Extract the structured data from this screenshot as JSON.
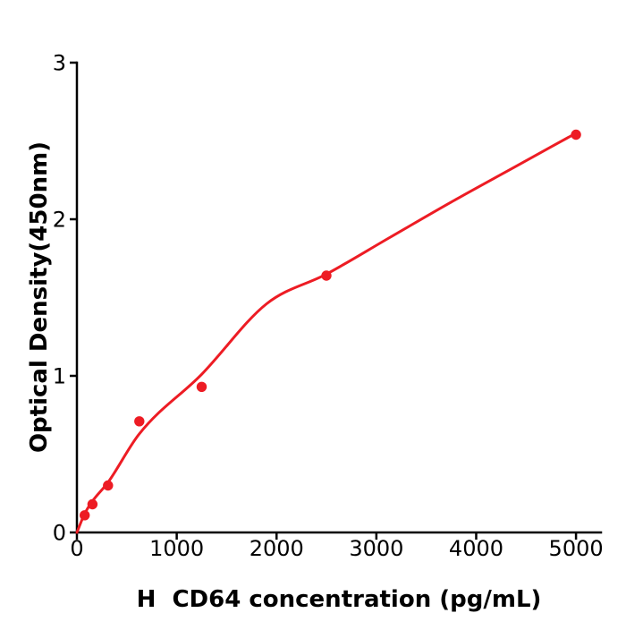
{
  "chart_data": {
    "type": "scatter",
    "subtype": "standard-curve-with-fit",
    "xlabel": "H  CD64 concentration (pg/mL)",
    "ylabel": "Optical Density(450nm)",
    "x": [
      78,
      156,
      312,
      625,
      1250,
      2500,
      5000
    ],
    "y": [
      0.11,
      0.18,
      0.3,
      0.71,
      0.93,
      1.64,
      2.54
    ],
    "fit_curve": [
      [
        0,
        0
      ],
      [
        78,
        0.12
      ],
      [
        156,
        0.2
      ],
      [
        312,
        0.32
      ],
      [
        625,
        0.63
      ],
      [
        1250,
        1.01
      ],
      [
        1900,
        1.46
      ],
      [
        2500,
        1.65
      ],
      [
        3125,
        1.88
      ],
      [
        3750,
        2.11
      ],
      [
        4375,
        2.33
      ],
      [
        5000,
        2.55
      ]
    ],
    "x_ticks": [
      0,
      1000,
      2000,
      3000,
      4000,
      5000
    ],
    "x_tick_labels": [
      "0",
      "1000",
      "2000",
      "3000",
      "4000",
      "5000"
    ],
    "y_ticks": [
      0,
      1,
      2,
      3
    ],
    "y_tick_labels": [
      "0",
      "1",
      "2",
      "3"
    ],
    "xlim": [
      0,
      5250
    ],
    "ylim": [
      0,
      3
    ],
    "grid": false,
    "marker_color": "#ed1c24",
    "line_color": "#ed1c24",
    "axis_color": "#000000",
    "background": "#ffffff"
  }
}
